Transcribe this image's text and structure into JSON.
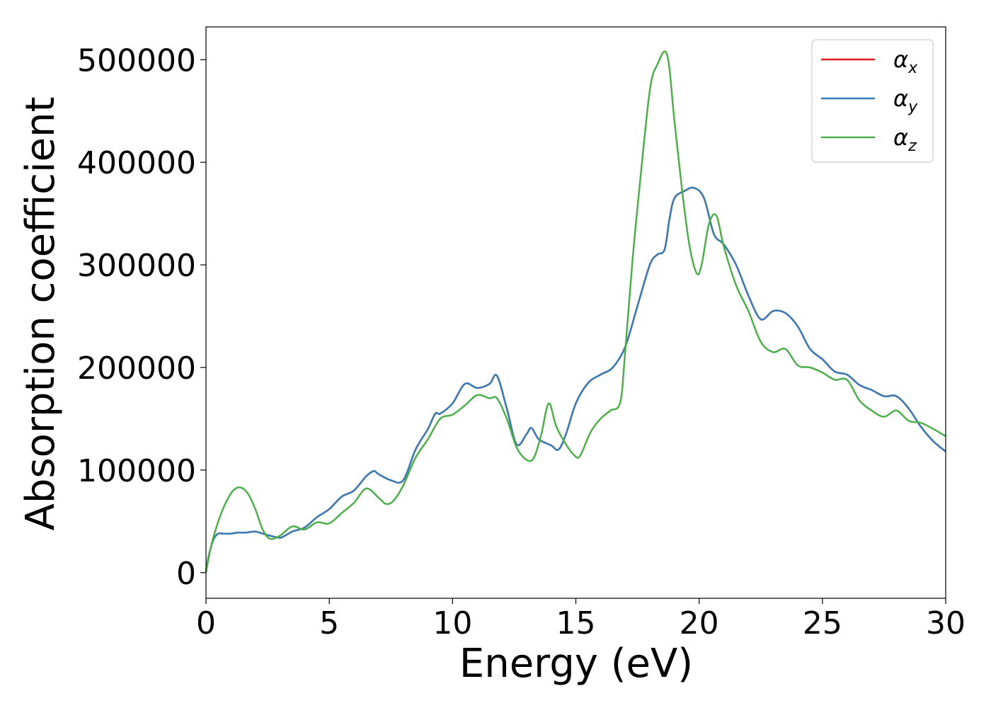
{
  "chart_data": {
    "type": "line",
    "title": "",
    "xlabel": "Energy (eV)",
    "ylabel": "Absorption coefficient",
    "xlim": [
      0,
      30
    ],
    "ylim": [
      -25000,
      532000
    ],
    "xticks": [
      0,
      5,
      10,
      15,
      20,
      25,
      30
    ],
    "xtick_labels": [
      "0",
      "5",
      "10",
      "15",
      "20",
      "25",
      "30"
    ],
    "yticks": [
      0,
      100000,
      200000,
      300000,
      400000,
      500000
    ],
    "ytick_labels": [
      "0",
      "100000",
      "200000",
      "300000",
      "400000",
      "500000"
    ],
    "grid": false,
    "legend_position": "top-right",
    "series": [
      {
        "name": "α",
        "subscript": "x",
        "color": "#e41a1c",
        "x": [
          0,
          0.1,
          0.3,
          0.5,
          0.7,
          1.0,
          1.3,
          1.6,
          2.0,
          2.3,
          2.6,
          3.0,
          3.2,
          3.5,
          4.0,
          4.5,
          5.0,
          5.5,
          6.0,
          6.5,
          6.8,
          7.0,
          7.5,
          8.0,
          8.5,
          9.0,
          9.3,
          9.5,
          10.0,
          10.5,
          11.0,
          11.5,
          11.8,
          12.2,
          12.6,
          13.0,
          13.2,
          13.5,
          14.0,
          14.3,
          14.6,
          15.0,
          15.5,
          16.0,
          16.5,
          17.0,
          17.5,
          18.0,
          18.3,
          18.6,
          18.8,
          19.0,
          19.4,
          19.8,
          20.2,
          20.6,
          21.0,
          21.5,
          22.0,
          22.5,
          23.0,
          23.5,
          24.0,
          24.5,
          25.0,
          25.5,
          26.0,
          26.5,
          27.0,
          27.5,
          28.0,
          28.5,
          29.0,
          29.5,
          30.0
        ],
        "values": [
          0,
          15000,
          32000,
          38000,
          38000,
          38000,
          39000,
          39000,
          40000,
          38000,
          36000,
          34000,
          36000,
          40000,
          44000,
          54000,
          62000,
          74000,
          80000,
          94000,
          99000,
          96000,
          90000,
          90000,
          120000,
          140000,
          155000,
          155000,
          165000,
          184000,
          180000,
          184000,
          192000,
          160000,
          125000,
          135000,
          141000,
          130000,
          124000,
          120000,
          135000,
          165000,
          185000,
          193000,
          200000,
          220000,
          260000,
          300000,
          310000,
          315000,
          345000,
          365000,
          372000,
          375000,
          365000,
          330000,
          320000,
          300000,
          270000,
          247000,
          255000,
          253000,
          240000,
          218000,
          208000,
          196000,
          193000,
          183000,
          178000,
          172000,
          172000,
          160000,
          142000,
          128000,
          118000
        ]
      },
      {
        "name": "α",
        "subscript": "y",
        "color": "#377eb8",
        "x": [
          0,
          0.1,
          0.3,
          0.5,
          0.7,
          1.0,
          1.3,
          1.6,
          2.0,
          2.3,
          2.6,
          3.0,
          3.2,
          3.5,
          4.0,
          4.5,
          5.0,
          5.5,
          6.0,
          6.5,
          6.8,
          7.0,
          7.5,
          8.0,
          8.5,
          9.0,
          9.3,
          9.5,
          10.0,
          10.5,
          11.0,
          11.5,
          11.8,
          12.2,
          12.6,
          13.0,
          13.2,
          13.5,
          14.0,
          14.3,
          14.6,
          15.0,
          15.5,
          16.0,
          16.5,
          17.0,
          17.5,
          18.0,
          18.3,
          18.6,
          18.8,
          19.0,
          19.4,
          19.8,
          20.2,
          20.6,
          21.0,
          21.5,
          22.0,
          22.5,
          23.0,
          23.5,
          24.0,
          24.5,
          25.0,
          25.5,
          26.0,
          26.5,
          27.0,
          27.5,
          28.0,
          28.5,
          29.0,
          29.5,
          30.0
        ],
        "values": [
          0,
          15000,
          32000,
          38000,
          38000,
          38000,
          39000,
          39000,
          40000,
          38000,
          36000,
          34000,
          36000,
          40000,
          44000,
          54000,
          62000,
          74000,
          80000,
          94000,
          99000,
          96000,
          90000,
          90000,
          120000,
          140000,
          155000,
          155000,
          165000,
          184000,
          180000,
          184000,
          192000,
          160000,
          125000,
          135000,
          141000,
          130000,
          124000,
          120000,
          135000,
          165000,
          185000,
          193000,
          200000,
          220000,
          260000,
          300000,
          310000,
          315000,
          345000,
          365000,
          372000,
          375000,
          365000,
          330000,
          320000,
          300000,
          270000,
          247000,
          255000,
          253000,
          240000,
          218000,
          208000,
          196000,
          193000,
          183000,
          178000,
          172000,
          172000,
          160000,
          142000,
          128000,
          118000
        ]
      },
      {
        "name": "α",
        "subscript": "z",
        "color": "#4daf4a",
        "x": [
          0,
          0.2,
          0.5,
          0.8,
          1.1,
          1.4,
          1.7,
          2.0,
          2.3,
          2.6,
          3.0,
          3.5,
          4.0,
          4.5,
          5.0,
          5.5,
          6.0,
          6.5,
          7.0,
          7.3,
          7.6,
          8.0,
          8.5,
          9.0,
          9.5,
          10.0,
          10.5,
          11.0,
          11.5,
          11.8,
          12.2,
          12.6,
          13.0,
          13.3,
          13.6,
          13.9,
          14.2,
          14.6,
          15.0,
          15.2,
          15.6,
          16.0,
          16.4,
          16.8,
          17.0,
          17.3,
          17.6,
          18.0,
          18.3,
          18.7,
          19.0,
          19.3,
          19.6,
          19.9,
          20.1,
          20.4,
          20.7,
          21.0,
          21.5,
          22.0,
          22.5,
          23.0,
          23.5,
          24.0,
          24.5,
          25.0,
          25.5,
          26.0,
          26.5,
          27.0,
          27.5,
          28.0,
          28.5,
          29.0,
          29.5,
          30.0
        ],
        "values": [
          0,
          25000,
          50000,
          68000,
          80000,
          83000,
          77000,
          62000,
          42000,
          33000,
          36000,
          45000,
          42000,
          49000,
          48000,
          58000,
          68000,
          82000,
          73000,
          67000,
          70000,
          85000,
          112000,
          130000,
          150000,
          154000,
          163000,
          173000,
          170000,
          170000,
          150000,
          122000,
          110000,
          112000,
          135000,
          165000,
          143000,
          125000,
          113000,
          115000,
          137000,
          150000,
          158000,
          166000,
          215000,
          305000,
          380000,
          470000,
          495000,
          505000,
          440000,
          375000,
          320000,
          292000,
          300000,
          340000,
          348000,
          318000,
          280000,
          255000,
          225000,
          215000,
          218000,
          202000,
          200000,
          195000,
          188000,
          188000,
          168000,
          158000,
          152000,
          158000,
          148000,
          146000,
          140000,
          133000
        ]
      }
    ]
  }
}
